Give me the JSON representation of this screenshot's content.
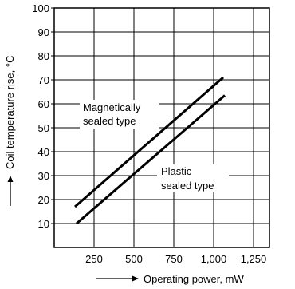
{
  "chart_data": {
    "type": "line",
    "xlabel": "Operating power, mW",
    "ylabel": "Coil temperature rise, °C",
    "xlim": [
      0,
      1350
    ],
    "ylim": [
      0,
      100
    ],
    "x_ticks": [
      250,
      500,
      750,
      1000,
      1250
    ],
    "x_tick_labels": [
      "250",
      "500",
      "750",
      "1,000",
      "1,250"
    ],
    "y_ticks": [
      10,
      20,
      30,
      40,
      50,
      60,
      70,
      80,
      90,
      100
    ],
    "y_tick_labels": [
      "10",
      "20",
      "30",
      "40",
      "50",
      "60",
      "70",
      "80",
      "90",
      "100"
    ],
    "grid": true,
    "series": [
      {
        "name": "Magnetically sealed type",
        "x": [
          130,
          1060
        ],
        "y": [
          17,
          71
        ]
      },
      {
        "name": "Plastic sealed type",
        "x": [
          140,
          1070
        ],
        "y": [
          10,
          63.5
        ]
      }
    ],
    "annotations": [
      {
        "lines": [
          "Magnetically",
          "sealed type"
        ],
        "series": 0
      },
      {
        "lines": [
          "Plastic",
          "sealed type"
        ],
        "series": 1
      }
    ]
  }
}
